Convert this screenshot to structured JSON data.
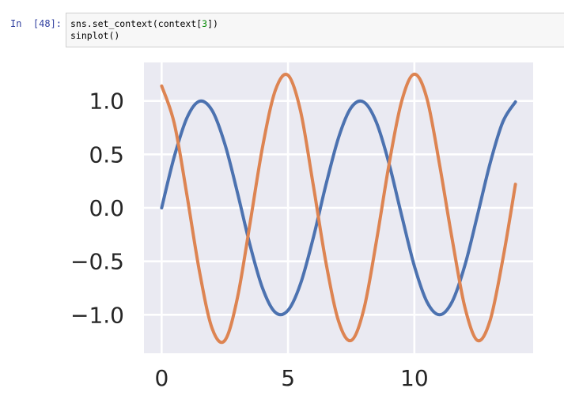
{
  "cell": {
    "prompt": "In  [48]:",
    "code_lines": [
      {
        "before": "sns.set_context(context[",
        "num": "3",
        "after": "])"
      },
      {
        "before": "sinplot()",
        "num": "",
        "after": ""
      }
    ]
  },
  "chart_data": {
    "type": "line",
    "title": "",
    "xlabel": "",
    "ylabel": "",
    "xlim": [
      -0.7,
      14.7
    ],
    "ylim": [
      -1.36,
      1.36
    ],
    "grid": true,
    "legend": "none",
    "x_ticks": [
      0,
      5,
      10
    ],
    "x_tick_labels": [
      "0",
      "5",
      "10"
    ],
    "y_ticks": [
      1.0,
      0.5,
      0.0,
      -0.5,
      -1.0
    ],
    "y_tick_labels": [
      "1.0",
      "0.5",
      "0.0",
      "−0.5",
      "−1.0"
    ],
    "x": [
      0,
      0.5,
      1,
      1.5,
      2,
      2.5,
      3,
      3.5,
      4,
      4.5,
      5,
      5.5,
      6,
      6.5,
      7,
      7.5,
      8,
      8.5,
      9,
      9.5,
      10,
      10.5,
      11,
      11.5,
      12,
      12.5,
      13,
      13.5,
      14
    ],
    "series": [
      {
        "color": "#4c72b0",
        "values": [
          0,
          0.479,
          0.841,
          0.997,
          0.909,
          0.598,
          0.141,
          -0.351,
          -0.757,
          -0.978,
          -0.959,
          -0.706,
          -0.279,
          0.215,
          0.657,
          0.938,
          0.989,
          0.798,
          0.412,
          -0.075,
          -0.544,
          -0.88,
          -1.0,
          -0.875,
          -0.537,
          -0.066,
          0.42,
          0.804,
          0.991
        ]
      },
      {
        "color": "#dd8452",
        "values": [
          1.14,
          0.79,
          0.12,
          -0.6,
          -1.13,
          -1.24,
          -0.84,
          -0.14,
          0.58,
          1.1,
          1.24,
          0.9,
          0.21,
          -0.51,
          -1.06,
          -1.24,
          -0.95,
          -0.31,
          0.41,
          1.0,
          1.25,
          1.02,
          0.4,
          -0.3,
          -0.93,
          -1.24,
          -1.05,
          -0.48,
          0.22
        ]
      }
    ]
  },
  "style": {
    "plot_bg": "#eaeaf2",
    "grid_color": "#ffffff",
    "tick_text": "#262626",
    "prompt_color": "#303f9f",
    "number_color": "#008800"
  }
}
